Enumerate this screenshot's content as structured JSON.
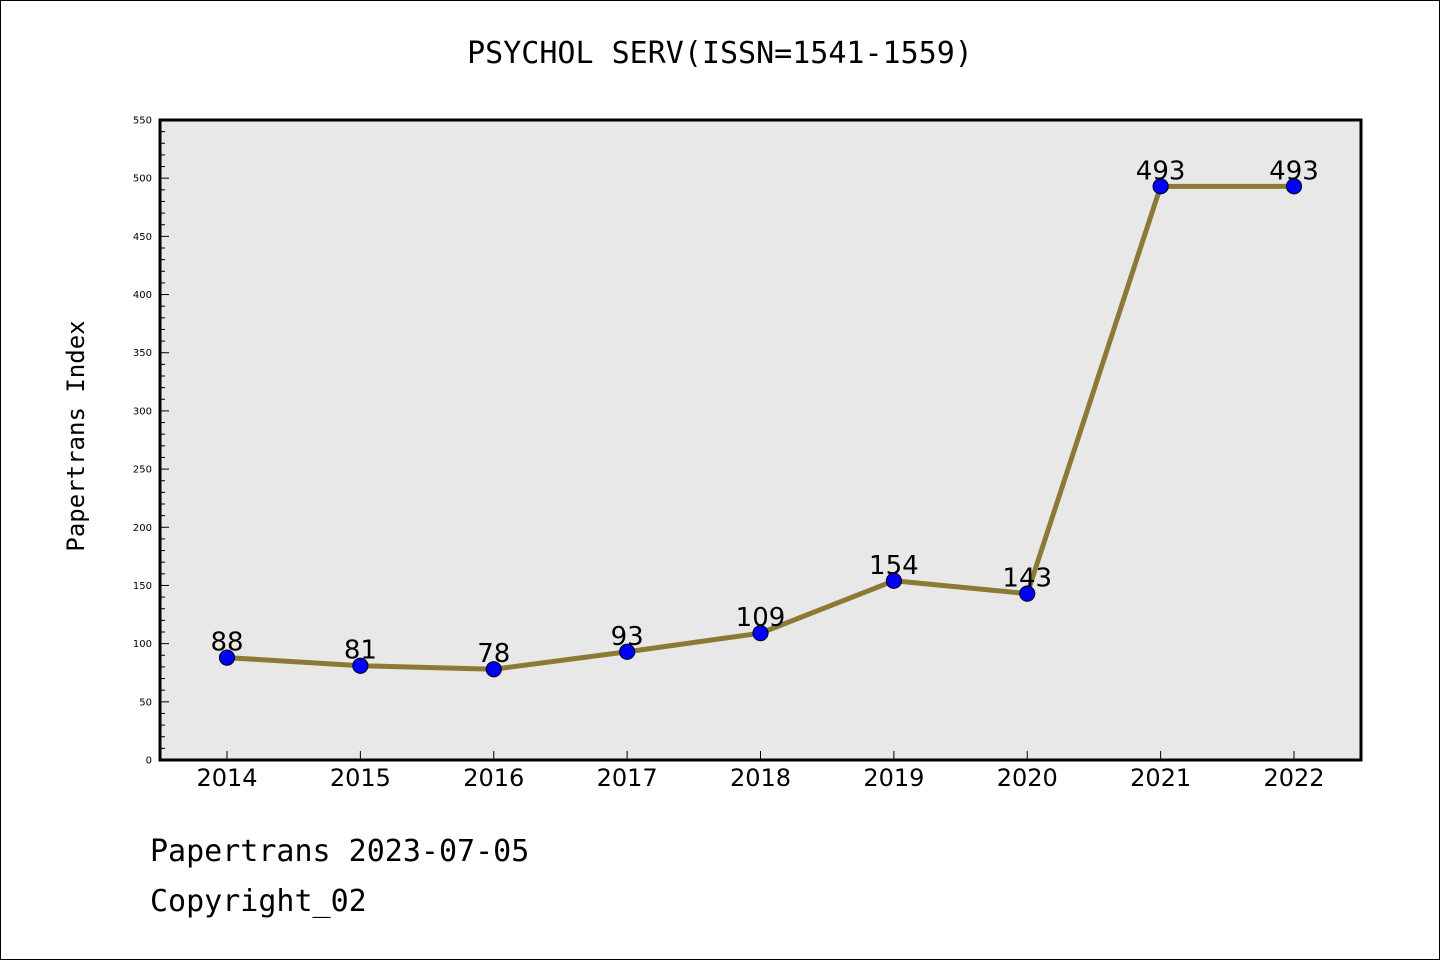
{
  "chart_data": {
    "type": "line",
    "title": "PSYCHOL SERV(ISSN=1541-1559)",
    "ylabel": "Papertrans Index",
    "xlabel": "",
    "categories": [
      "2014",
      "2015",
      "2016",
      "2017",
      "2018",
      "2019",
      "2020",
      "2021",
      "2022"
    ],
    "series": [
      {
        "values": [
          88,
          81,
          78,
          93,
          109,
          154,
          143,
          493,
          493
        ]
      }
    ],
    "data_labels": [
      "88",
      "81",
      "78",
      "93",
      "109",
      "154",
      "143",
      "493",
      "493"
    ],
    "ylim": [
      0,
      550
    ],
    "yticks": [
      "0",
      "50",
      "100",
      "150",
      "200",
      "250",
      "300",
      "350",
      "400",
      "450",
      "500",
      "550"
    ],
    "grid": false,
    "colors": {
      "line": "#8b7a35",
      "marker_fill": "#0000ff",
      "marker_edge": "#000033",
      "plot_background": "#e8e8e8"
    }
  },
  "footer": {
    "line1": "Papertrans 2023-07-05",
    "line2": "Copyright_02"
  }
}
